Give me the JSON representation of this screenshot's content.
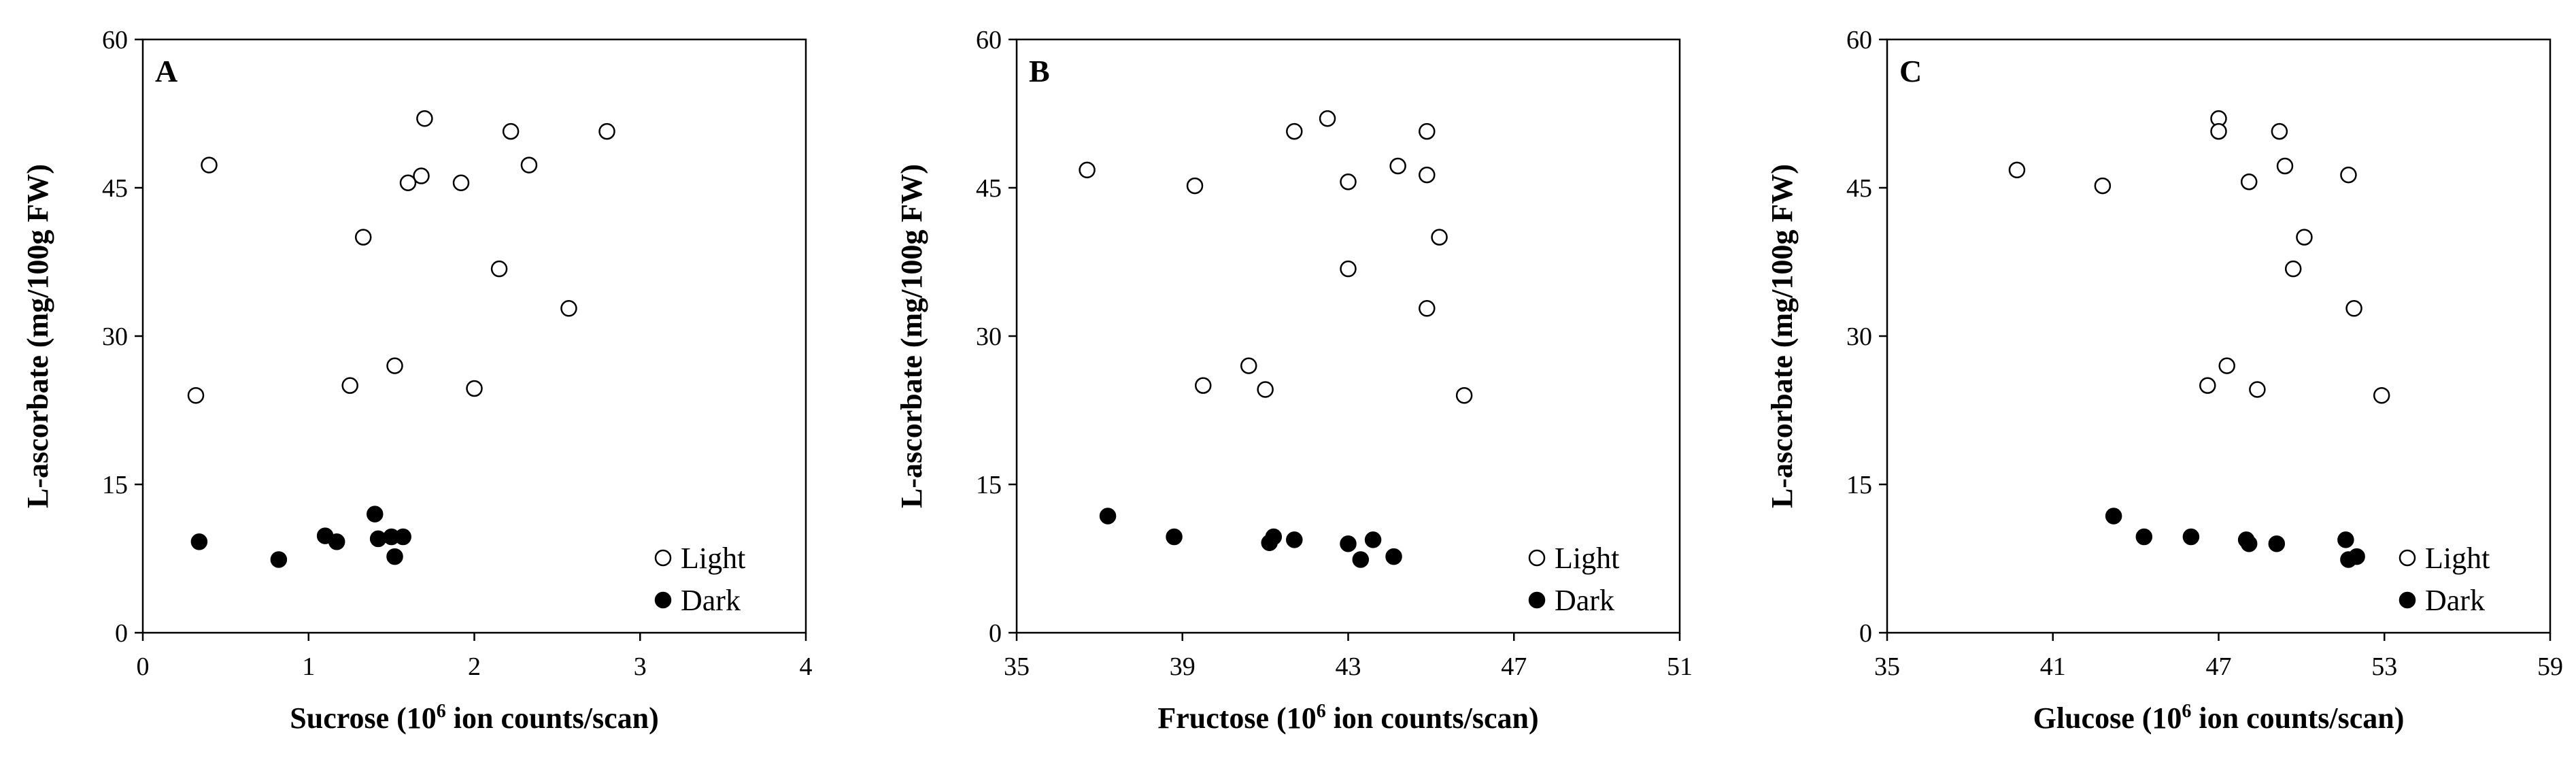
{
  "chart_data": [
    {
      "type": "scatter",
      "panel_label": "A",
      "xlabel": {
        "prefix": "Sucrose (10",
        "sup": "6",
        "suffix": " ion counts/scan)"
      },
      "ylabel": "L-ascorbate (mg/100g FW)",
      "xlim": [
        0,
        4
      ],
      "ylim": [
        0,
        60
      ],
      "xticks": [
        0,
        1,
        2,
        3,
        4
      ],
      "yticks": [
        0,
        15,
        30,
        45,
        60
      ],
      "grid": false,
      "legend_position": "bottom-right",
      "series": [
        {
          "name": "Light",
          "marker": "open-circle",
          "points": [
            [
              0.32,
              24
            ],
            [
              0.4,
              47.3
            ],
            [
              1.25,
              25
            ],
            [
              1.33,
              40
            ],
            [
              1.52,
              27
            ],
            [
              1.6,
              45.5
            ],
            [
              1.68,
              46.2
            ],
            [
              1.7,
              52
            ],
            [
              1.92,
              45.5
            ],
            [
              2.0,
              24.7
            ],
            [
              2.15,
              36.8
            ],
            [
              2.22,
              50.7
            ],
            [
              2.33,
              47.3
            ],
            [
              2.57,
              32.8
            ],
            [
              2.8,
              50.7
            ]
          ]
        },
        {
          "name": "Dark",
          "marker": "filled-circle",
          "points": [
            [
              0.34,
              9.2
            ],
            [
              0.82,
              7.4
            ],
            [
              1.1,
              9.8
            ],
            [
              1.17,
              9.2
            ],
            [
              1.4,
              12.0
            ],
            [
              1.42,
              9.5
            ],
            [
              1.5,
              9.7
            ],
            [
              1.52,
              7.7
            ],
            [
              1.57,
              9.7
            ]
          ]
        }
      ]
    },
    {
      "type": "scatter",
      "panel_label": "B",
      "xlabel": {
        "prefix": "Fructose (10",
        "sup": "6",
        "suffix": " ion counts/scan)"
      },
      "ylabel": "L-ascorbate (mg/100g FW)",
      "xlim": [
        35,
        51
      ],
      "ylim": [
        0,
        60
      ],
      "xticks": [
        35,
        39,
        43,
        47,
        51
      ],
      "yticks": [
        0,
        15,
        30,
        45,
        60
      ],
      "grid": false,
      "legend_position": "bottom-right",
      "series": [
        {
          "name": "Light",
          "marker": "open-circle",
          "points": [
            [
              36.7,
              46.8
            ],
            [
              39.3,
              45.2
            ],
            [
              39.5,
              25
            ],
            [
              40.6,
              27
            ],
            [
              41.0,
              24.6
            ],
            [
              41.7,
              50.7
            ],
            [
              42.5,
              52
            ],
            [
              43.0,
              45.6
            ],
            [
              43.0,
              36.8
            ],
            [
              44.2,
              47.2
            ],
            [
              44.9,
              50.7
            ],
            [
              44.9,
              46.3
            ],
            [
              44.9,
              32.8
            ],
            [
              45.2,
              40
            ],
            [
              45.8,
              24
            ]
          ]
        },
        {
          "name": "Dark",
          "marker": "filled-circle",
          "points": [
            [
              37.2,
              11.8
            ],
            [
              38.8,
              9.7
            ],
            [
              41.1,
              9.1
            ],
            [
              41.2,
              9.7
            ],
            [
              41.7,
              9.4
            ],
            [
              43.0,
              9.0
            ],
            [
              43.3,
              7.4
            ],
            [
              43.6,
              9.4
            ],
            [
              44.1,
              7.7
            ]
          ]
        }
      ]
    },
    {
      "type": "scatter",
      "panel_label": "C",
      "xlabel": {
        "prefix": "Glucose (10",
        "sup": "6",
        "suffix": " ion counts/scan)"
      },
      "ylabel": "L-ascorbate (mg/100g FW)",
      "xlim": [
        35,
        59
      ],
      "ylim": [
        0,
        60
      ],
      "xticks": [
        35,
        41,
        47,
        53,
        59
      ],
      "yticks": [
        0,
        15,
        30,
        45,
        60
      ],
      "grid": false,
      "legend_position": "bottom-right",
      "series": [
        {
          "name": "Light",
          "marker": "open-circle",
          "points": [
            [
              39.7,
              46.8
            ],
            [
              42.8,
              45.2
            ],
            [
              46.6,
              25
            ],
            [
              47.0,
              52
            ],
            [
              47.0,
              50.7
            ],
            [
              47.3,
              27
            ],
            [
              48.1,
              45.6
            ],
            [
              48.4,
              24.6
            ],
            [
              49.2,
              50.7
            ],
            [
              49.4,
              47.2
            ],
            [
              49.7,
              36.8
            ],
            [
              50.1,
              40
            ],
            [
              51.7,
              46.3
            ],
            [
              51.9,
              32.8
            ],
            [
              52.9,
              24
            ]
          ]
        },
        {
          "name": "Dark",
          "marker": "filled-circle",
          "points": [
            [
              43.2,
              11.8
            ],
            [
              44.3,
              9.7
            ],
            [
              46.0,
              9.7
            ],
            [
              48.0,
              9.4
            ],
            [
              48.1,
              9.0
            ],
            [
              49.1,
              9.0
            ],
            [
              51.6,
              9.4
            ],
            [
              51.7,
              7.4
            ],
            [
              52.0,
              7.7
            ]
          ]
        }
      ]
    }
  ]
}
